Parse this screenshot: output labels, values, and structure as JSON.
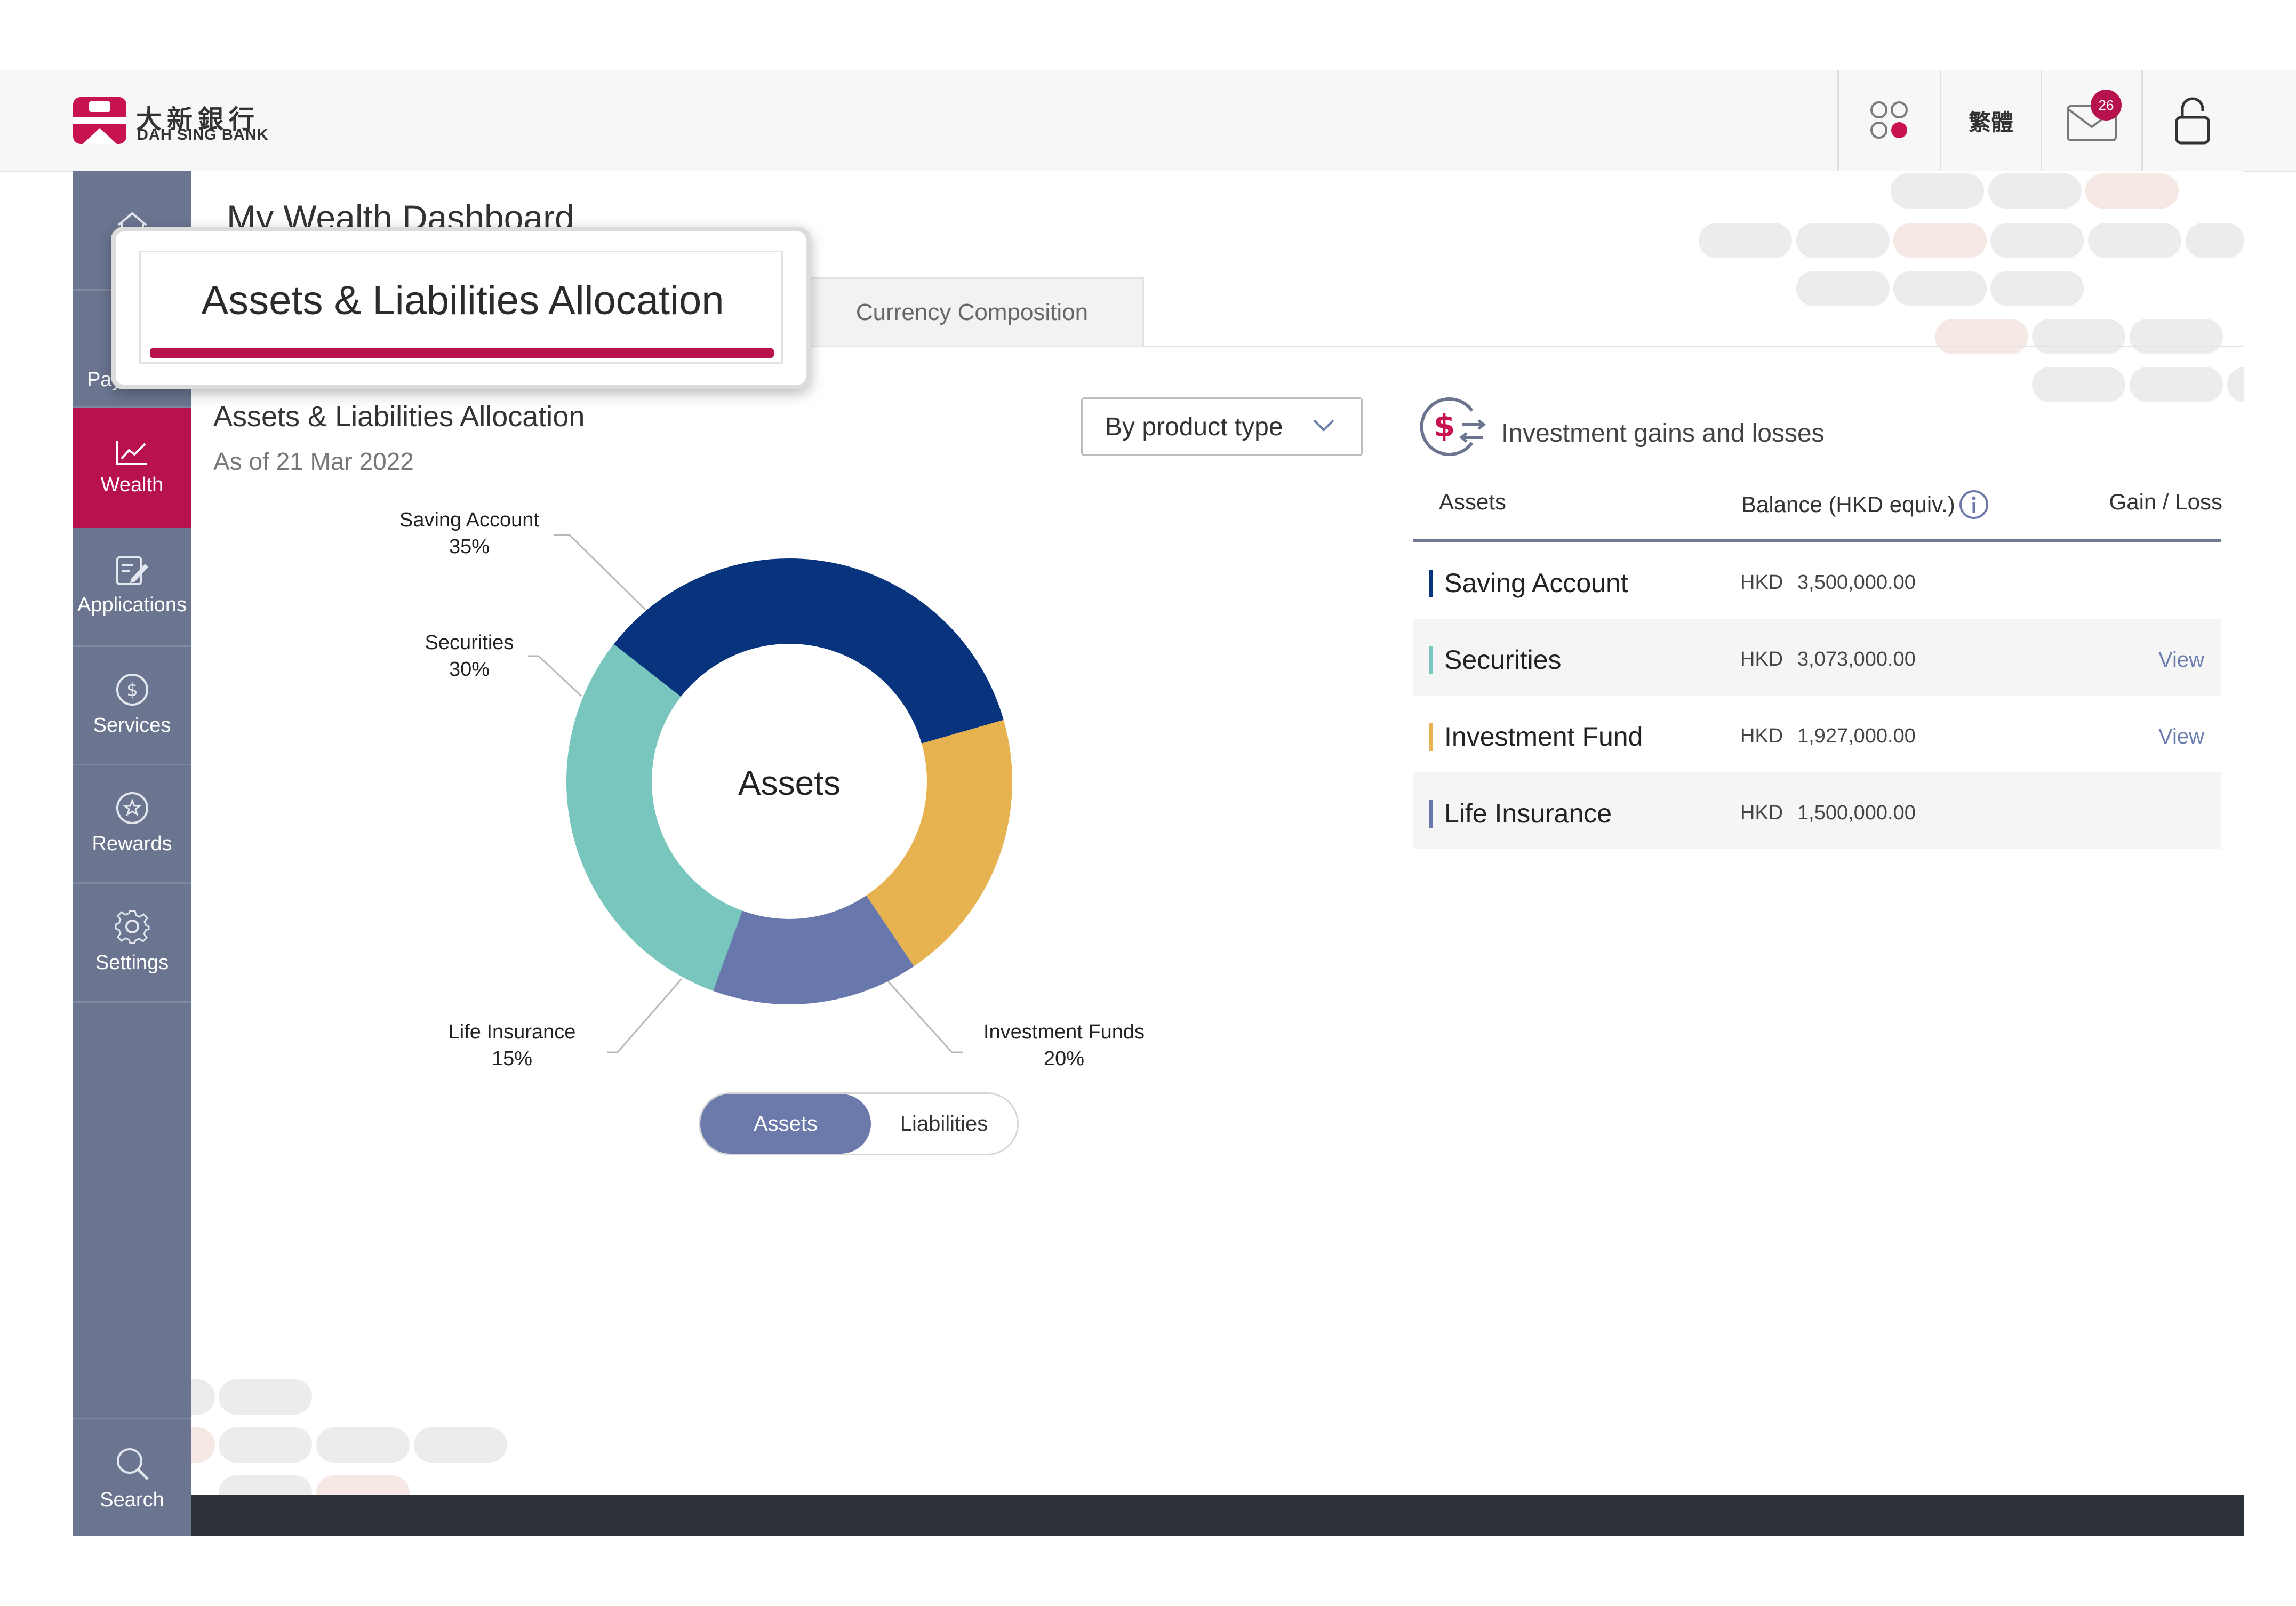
{
  "header": {
    "logo_cn": "大新銀行",
    "logo_en": "DAH SING BANK",
    "language_label": "繁體",
    "mail_count": "26",
    "icons": [
      "apps-icon",
      "envelope-icon",
      "lock-icon"
    ]
  },
  "sidebar": {
    "items": [
      {
        "label": "",
        "icon": "home-icon"
      },
      {
        "label": "Payments",
        "icon": "transfer-icon"
      },
      {
        "label": "Wealth",
        "icon": "chart-line-icon",
        "active": true
      },
      {
        "label": "Applications",
        "icon": "form-edit-icon"
      },
      {
        "label": "Services",
        "icon": "dollar-circle-icon"
      },
      {
        "label": "Rewards",
        "icon": "star-circle-icon"
      },
      {
        "label": "Settings",
        "icon": "gear-icon"
      }
    ],
    "search_label": "Search"
  },
  "page": {
    "title": "My Wealth Dashboard"
  },
  "tabs": {
    "allocation": "Assets & Liabilities Allocation",
    "currency": "Currency Composition"
  },
  "allocation": {
    "title": "Assets & Liabilities Allocation",
    "as_of": "As of 21 Mar 2022",
    "dropdown_value": "By product type",
    "center_label": "Assets",
    "toggle": {
      "assets": "Assets",
      "liabilities": "Liabilities",
      "selected": "Assets"
    }
  },
  "chart_data": {
    "type": "pie",
    "categories": [
      "Saving Account",
      "Investment Funds",
      "Life Insurance",
      "Securities"
    ],
    "values": [
      35,
      20,
      15,
      30
    ],
    "percent_labels": [
      "35%",
      "20%",
      "15%",
      "30%"
    ],
    "colors": [
      "#08337d",
      "#e6b350",
      "#6878ac",
      "#78c6be"
    ],
    "donut": true,
    "center_label": "Assets"
  },
  "gains": {
    "title": "Investment gains and losses",
    "icon": "dollar-exchange-icon",
    "columns": {
      "assets": "Assets",
      "balance": "Balance (HKD equiv.)",
      "gain_loss": "Gain / Loss"
    },
    "rows": [
      {
        "name": "Saving Account",
        "currency": "HKD",
        "amount": "3,500,000.00",
        "view": "",
        "color": "#08337d"
      },
      {
        "name": "Securities",
        "currency": "HKD",
        "amount": "3,073,000.00",
        "view": "View",
        "color": "#78c6be"
      },
      {
        "name": "Investment Fund",
        "currency": "HKD",
        "amount": "1,927,000.00",
        "view": "View",
        "color": "#e6b350"
      },
      {
        "name": "Life Insurance",
        "currency": "HKD",
        "amount": "1,500,000.00",
        "view": "",
        "color": "#6878ac"
      }
    ]
  }
}
